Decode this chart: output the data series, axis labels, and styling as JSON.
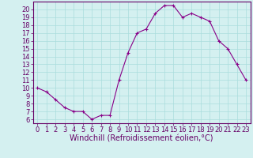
{
  "x": [
    0,
    1,
    2,
    3,
    4,
    5,
    6,
    7,
    8,
    9,
    10,
    11,
    12,
    13,
    14,
    15,
    16,
    17,
    18,
    19,
    20,
    21,
    22,
    23
  ],
  "y": [
    10.0,
    9.5,
    8.5,
    7.5,
    7.0,
    7.0,
    6.0,
    6.5,
    6.5,
    11.0,
    14.5,
    17.0,
    17.5,
    19.5,
    20.5,
    20.5,
    19.0,
    19.5,
    19.0,
    18.5,
    16.0,
    15.0,
    13.0,
    11.0
  ],
  "line_color": "#880088",
  "marker_color": "#880088",
  "bg_color": "#d4f0f0",
  "grid_color": "#aadddd",
  "xlabel": "Windchill (Refroidissement éolien,°C)",
  "xlim": [
    -0.5,
    23.5
  ],
  "ylim": [
    5.5,
    21.0
  ],
  "yticks": [
    6,
    7,
    8,
    9,
    10,
    11,
    12,
    13,
    14,
    15,
    16,
    17,
    18,
    19,
    20
  ],
  "xticks": [
    0,
    1,
    2,
    3,
    4,
    5,
    6,
    7,
    8,
    9,
    10,
    11,
    12,
    13,
    14,
    15,
    16,
    17,
    18,
    19,
    20,
    21,
    22,
    23
  ],
  "xlabel_fontsize": 7.0,
  "tick_fontsize": 6.0,
  "axis_label_color": "#660066",
  "tick_color": "#660066",
  "spine_color": "#660066"
}
